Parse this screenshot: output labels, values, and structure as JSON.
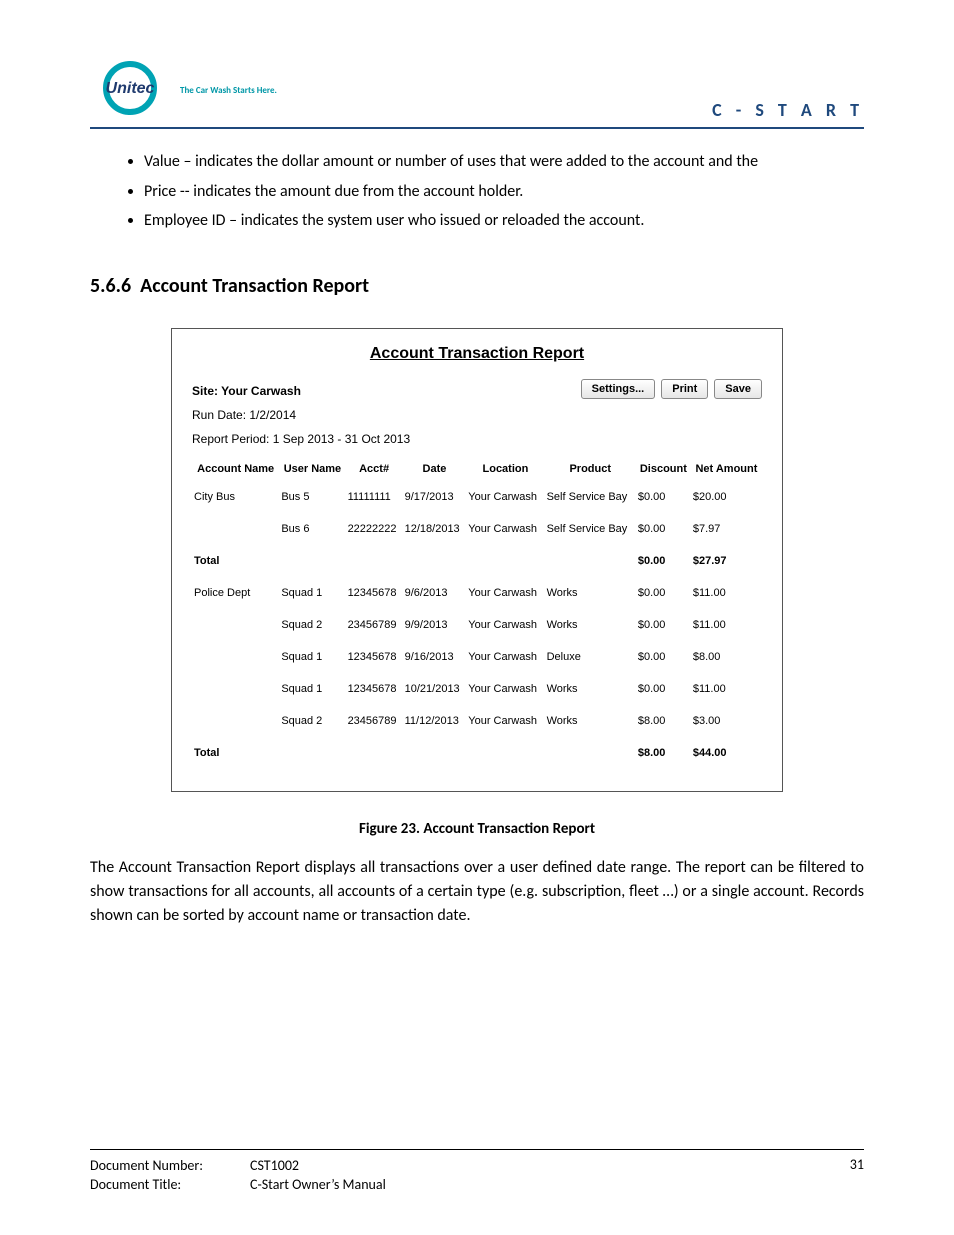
{
  "header": {
    "logo_text": "Unitec",
    "tagline": "The Car Wash Starts Here.",
    "title": "C - S T A R T",
    "accent_color": "#1f497d",
    "logo_ring_color": "#00a3b4"
  },
  "bullets": [
    "Value – indicates the dollar amount or number of uses that were added to the account and the",
    "Price -- indicates the amount due from the account holder.",
    "Employee ID – indicates the system user who issued or reloaded the account."
  ],
  "section": {
    "number": "5.6.6",
    "title": "Account Transaction Report"
  },
  "report": {
    "title": "Account Transaction Report",
    "site_label": "Site: Your Carwash",
    "run_date_label": "Run Date: 1/2/2014",
    "period_label": "Report Period: 1 Sep 2013 - 31 Oct 2013",
    "buttons": {
      "settings": "Settings...",
      "print": "Print",
      "save": "Save"
    },
    "columns": [
      "Account Name",
      "User Name",
      "Acct#",
      "Date",
      "Location",
      "Product",
      "Discount",
      "Net Amount"
    ],
    "rows": [
      {
        "account": "City Bus",
        "user": "Bus 5",
        "acct": "11111111",
        "date": "9/17/2013",
        "location": "Your Carwash",
        "product": "Self Service Bay",
        "discount": "$0.00",
        "net": "$20.00"
      },
      {
        "account": "",
        "user": "Bus 6",
        "acct": "22222222",
        "date": "12/18/2013",
        "location": "Your Carwash",
        "product": "Self Service Bay",
        "discount": "$0.00",
        "net": "$7.97"
      },
      {
        "account": "Total",
        "user": "",
        "acct": "",
        "date": "",
        "location": "",
        "product": "",
        "discount": "$0.00",
        "net": "$27.97",
        "bold": true
      },
      {
        "account": "Police Dept",
        "user": "Squad 1",
        "acct": "12345678",
        "date": "9/6/2013",
        "location": "Your Carwash",
        "product": "Works",
        "discount": "$0.00",
        "net": "$11.00"
      },
      {
        "account": "",
        "user": "Squad 2",
        "acct": "23456789",
        "date": "9/9/2013",
        "location": "Your Carwash",
        "product": "Works",
        "discount": "$0.00",
        "net": "$11.00"
      },
      {
        "account": "",
        "user": "Squad 1",
        "acct": "12345678",
        "date": "9/16/2013",
        "location": "Your Carwash",
        "product": "Deluxe",
        "discount": "$0.00",
        "net": "$8.00"
      },
      {
        "account": "",
        "user": "Squad 1",
        "acct": "12345678",
        "date": "10/21/2013",
        "location": "Your Carwash",
        "product": "Works",
        "discount": "$0.00",
        "net": "$11.00"
      },
      {
        "account": "",
        "user": "Squad 2",
        "acct": "23456789",
        "date": "11/12/2013",
        "location": "Your Carwash",
        "product": "Works",
        "discount": "$8.00",
        "net": "$3.00"
      },
      {
        "account": "Total",
        "user": "",
        "acct": "",
        "date": "",
        "location": "",
        "product": "",
        "discount": "$8.00",
        "net": "$44.00",
        "bold": true
      }
    ]
  },
  "figure_caption": "Figure 23. Account Transaction Report",
  "paragraph": "The Account Transaction Report displays all transactions over a user defined date range.  The report can be filtered to show transactions for all accounts, all accounts of a certain type (e.g. subscription, fleet …) or a single account.  Records shown can be sorted by account name or transaction date.",
  "footer": {
    "doc_number_label": "Document Number:",
    "doc_number": "CST1002",
    "doc_title_label": "Document Title:",
    "doc_title": "C-Start Owner’s Manual",
    "page_number": "31"
  }
}
